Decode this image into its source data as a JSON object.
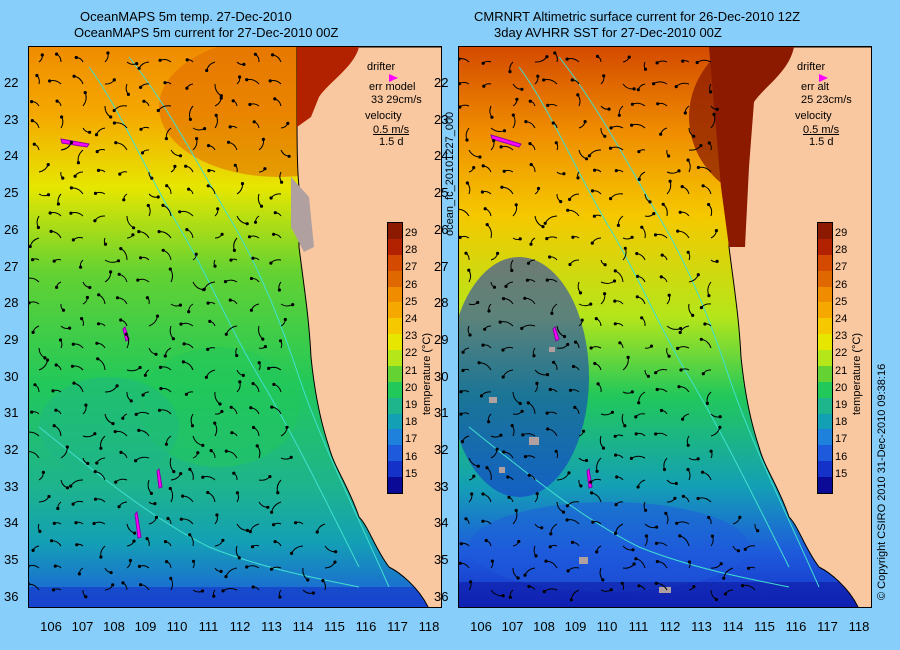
{
  "left_panel": {
    "title_line1": "OceanMAPS 5m temp. 27-Dec-2010",
    "title_line2": "OceanMAPS 5m current for 27-Dec-2010 00Z",
    "legend_drifter": "drifter",
    "legend_err_label": "err model",
    "legend_err_value": "33 29cm/s",
    "legend_velocity": "velocity",
    "legend_velocity_value": "0.5 m/s",
    "legend_duration": "1.5 d"
  },
  "right_panel": {
    "title_line1": "CMRNRT Altimetric surface current for 26-Dec-2010 12Z",
    "title_line2": "3day AVHRR SST for 27-Dec-2010 00Z",
    "legend_drifter": "drifter",
    "legend_err_label": "err alt",
    "legend_err_value": "25 23cm/s",
    "legend_velocity": "velocity",
    "legend_velocity_value": "0.5 m/s",
    "legend_duration": "1.5 d"
  },
  "latitude_labels": [
    "22",
    "23",
    "24",
    "25",
    "26",
    "27",
    "28",
    "29",
    "30",
    "31",
    "32",
    "33",
    "34",
    "35",
    "36"
  ],
  "longitude_labels": [
    "106",
    "107",
    "108",
    "109",
    "110",
    "111",
    "112",
    "113",
    "114",
    "115",
    "116",
    "117",
    "118"
  ],
  "colorbar": {
    "ticks": [
      "29",
      "28",
      "27",
      "26",
      "25",
      "24",
      "23",
      "22",
      "21",
      "20",
      "19",
      "18",
      "17",
      "16",
      "15"
    ],
    "label": "temperature (°C)",
    "colors": [
      "#8b1a00",
      "#b22200",
      "#d44a00",
      "#e06800",
      "#ef8c00",
      "#f5a800",
      "#f5c800",
      "#e6e600",
      "#b4e61a",
      "#64d232",
      "#22c85a",
      "#1eb48c",
      "#14a0b4",
      "#1e82dc",
      "#1e5adc",
      "#1432c8",
      "#0a0a96"
    ]
  },
  "side_text_left": "ocean_fc_20101227_000",
  "side_text_right": "© Copyright CSIRO 2010    31-Dec-2010 09:38:16",
  "colors": {
    "background": "#87cefa",
    "land": "#fac8a0",
    "coast": "#000000",
    "drifter": "#ff00ff",
    "isobath": "#40e0d0"
  }
}
